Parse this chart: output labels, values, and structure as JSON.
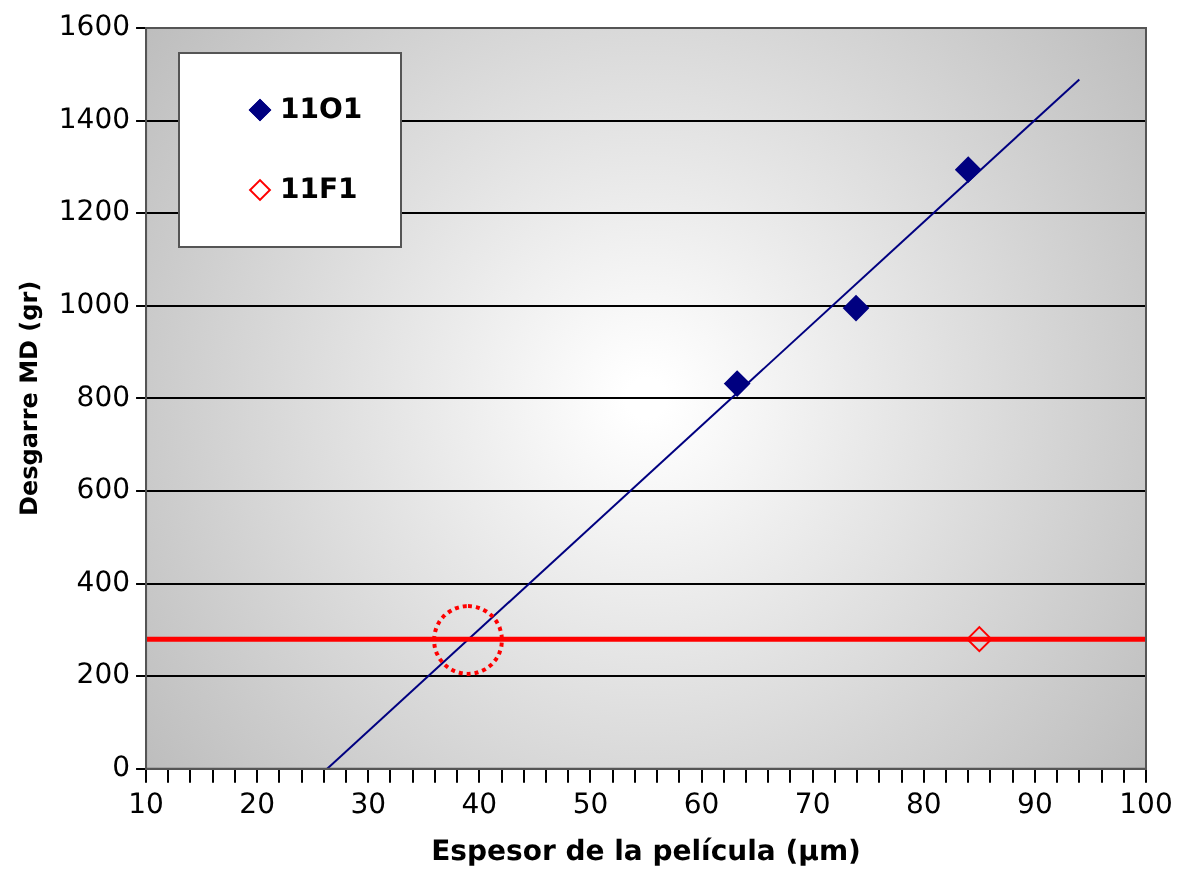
{
  "chart_data": {
    "type": "scatter",
    "xlabel": "Espesor de la película (µm)",
    "ylabel": "Desgarre MD (gr)",
    "series": [
      {
        "name": "11O1",
        "color": "#000080",
        "x": [
          63.2,
          73.9,
          84
        ],
        "values": [
          832,
          995,
          1294
        ],
        "marker": "diamond"
      },
      {
        "name": "11F1",
        "color": "#ff0000",
        "x": [
          85
        ],
        "values": [
          280
        ],
        "marker": "diamond"
      },
      {
        "type": "line",
        "color": "#000080",
        "x": [
          26.3,
          94
        ],
        "values": [
          0,
          1489
        ],
        "marker": "none"
      }
    ],
    "ref_lines": [
      {
        "axis": "y",
        "value": 280,
        "color": "#ff0000"
      }
    ],
    "xlim": [
      10,
      100
    ],
    "ylim": [
      0,
      1600
    ],
    "xticks": [
      10,
      {
        "value": 12,
        "label": null
      },
      {
        "value": 14,
        "label": null
      },
      {
        "value": 16,
        "label": null
      },
      {
        "value": 18,
        "label": null
      },
      20,
      {
        "value": 22,
        "label": null
      },
      {
        "value": 24,
        "label": null
      },
      {
        "value": 26,
        "label": null
      },
      {
        "value": 28,
        "label": null
      },
      30,
      {
        "value": 32,
        "label": null
      },
      {
        "value": 34,
        "label": null
      },
      {
        "value": 36,
        "label": null
      },
      {
        "value": 38,
        "label": null
      },
      40,
      {
        "value": 42,
        "label": null
      },
      {
        "value": 44,
        "label": null
      },
      {
        "value": 46,
        "label": null
      },
      {
        "value": 48,
        "label": null
      },
      50,
      {
        "value": 52,
        "label": null
      },
      {
        "value": 54,
        "label": null
      },
      {
        "value": 56,
        "label": null
      },
      {
        "value": 58,
        "label": null
      },
      60,
      {
        "value": 62,
        "label": null
      },
      {
        "value": 64,
        "label": null
      },
      {
        "value": 66,
        "label": null
      },
      {
        "value": 68,
        "label": null
      },
      70,
      {
        "value": 72,
        "label": null
      },
      {
        "value": 74,
        "label": null
      },
      {
        "value": 76,
        "label": null
      },
      {
        "value": 78,
        "label": null
      },
      80,
      {
        "value": 82,
        "label": null
      },
      {
        "value": 84,
        "label": null
      },
      {
        "value": 86,
        "label": null
      },
      {
        "value": 88,
        "label": null
      },
      90,
      {
        "value": 92,
        "label": null
      },
      {
        "value": 94,
        "label": null
      },
      {
        "value": 96,
        "label": null
      },
      {
        "value": 98,
        "label": null
      },
      100
    ],
    "yticks": [
      0,
      200,
      400,
      600,
      800,
      1000,
      1200,
      1400,
      1600
    ],
    "grid": "y",
    "legend": "top left"
  }
}
